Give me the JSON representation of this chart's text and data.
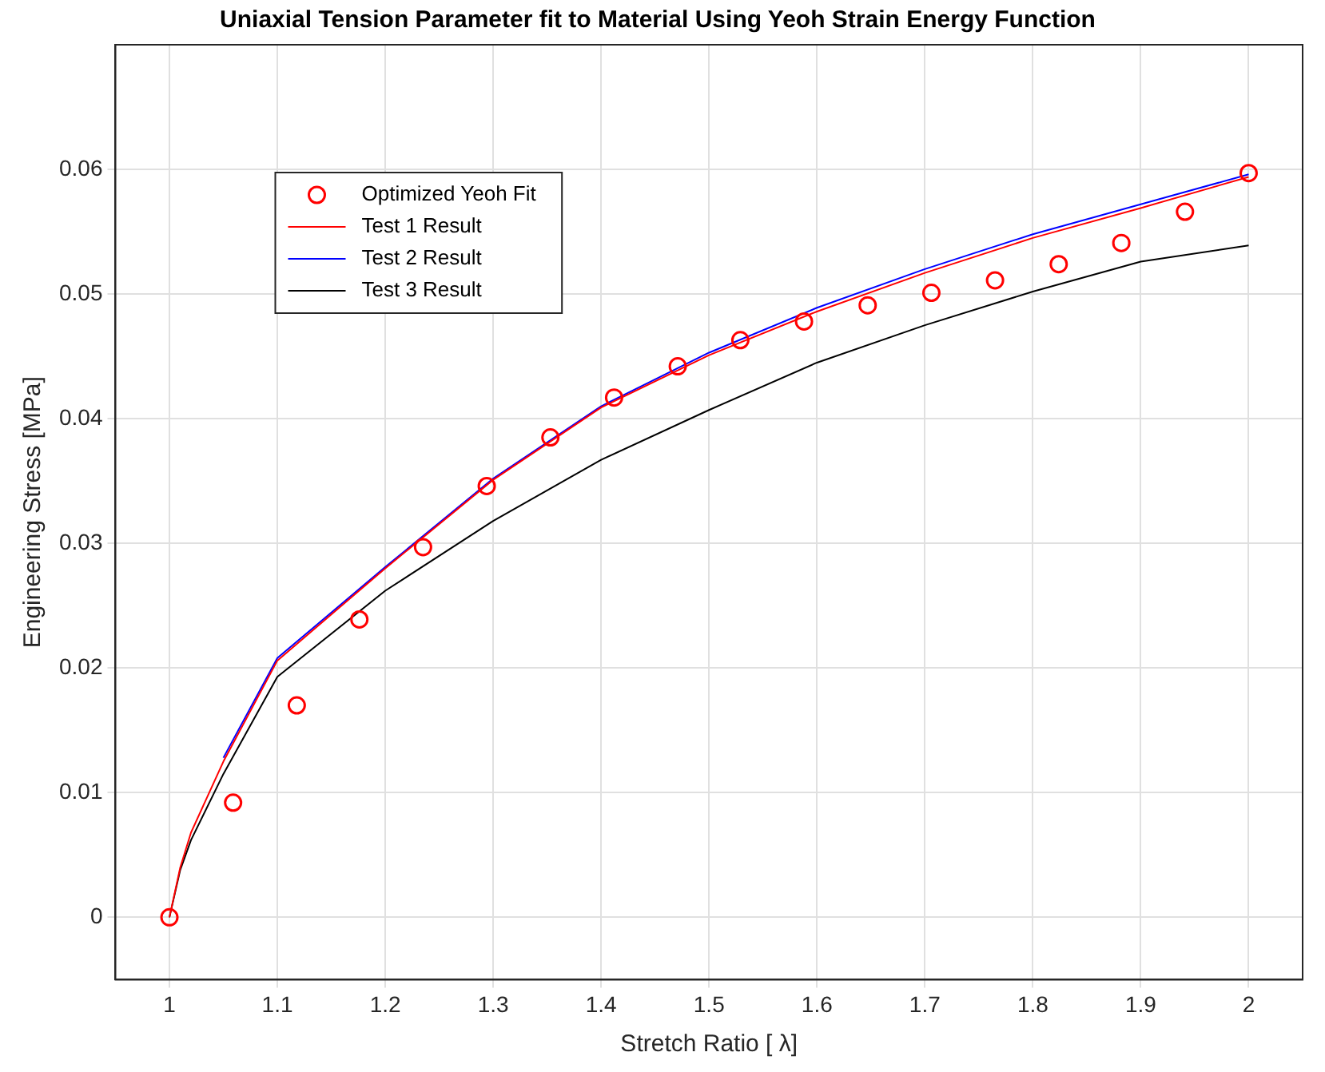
{
  "chart_data": {
    "type": "line",
    "title": "Uniaxial Tension Parameter fit to Material Using Yeoh Strain Energy Function",
    "xlabel": "Stretch Ratio [ λ]",
    "ylabel": "Engineering Stress [MPa]",
    "xlim": [
      0.95,
      2.05
    ],
    "xticks": [
      1,
      1.1,
      1.2,
      1.3,
      1.4,
      1.5,
      1.6,
      1.7,
      1.8,
      1.9,
      2
    ],
    "ylim": [
      -0.005,
      0.07
    ],
    "yticks": [
      0,
      0.01,
      0.02,
      0.03,
      0.04,
      0.05,
      0.06
    ],
    "grid": true,
    "legend": "top left",
    "series": [
      {
        "name": "Optimized Yeoh Fit",
        "type": "scatter",
        "marker": "circle",
        "color": "#ff0000",
        "x": [
          1,
          1.059,
          1.118,
          1.176,
          1.235,
          1.294,
          1.353,
          1.412,
          1.471,
          1.529,
          1.588,
          1.647,
          1.706,
          1.765,
          1.824,
          1.882,
          1.941,
          2
        ],
        "values": [
          0,
          0.0092,
          0.017,
          0.0239,
          0.0297,
          0.0346,
          0.0385,
          0.0417,
          0.0442,
          0.0463,
          0.0478,
          0.0491,
          0.0501,
          0.0511,
          0.0524,
          0.0541,
          0.0566,
          0.0597
        ]
      },
      {
        "name": "Test 1 Result",
        "type": "line",
        "marker": "none",
        "color": "#ff0000",
        "x": [
          1,
          1.01,
          1.02,
          1.05,
          1.1,
          1.2,
          1.3,
          1.4,
          1.5,
          1.6,
          1.7,
          1.8,
          1.9,
          2
        ],
        "values": [
          0,
          0.004,
          0.0068,
          0.0125,
          0.0206,
          0.028,
          0.0351,
          0.0409,
          0.0451,
          0.0486,
          0.0517,
          0.0545,
          0.0569,
          0.0594
        ]
      },
      {
        "name": "Test 2 Result",
        "type": "line",
        "marker": "none",
        "color": "#0000ff",
        "x": [
          1.05,
          1.1,
          1.2,
          1.3,
          1.4,
          1.5,
          1.6,
          1.7,
          1.8,
          1.9,
          2
        ],
        "values": [
          0.0128,
          0.0208,
          0.0281,
          0.0352,
          0.041,
          0.0453,
          0.0489,
          0.052,
          0.0548,
          0.0572,
          0.0596
        ]
      },
      {
        "name": "Test 3 Result",
        "type": "line",
        "marker": "none",
        "color": "#000000",
        "x": [
          1,
          1.01,
          1.02,
          1.05,
          1.1,
          1.2,
          1.3,
          1.4,
          1.5,
          1.6,
          1.7,
          1.8,
          1.9,
          2
        ],
        "values": [
          0,
          0.0038,
          0.0062,
          0.0115,
          0.0193,
          0.0262,
          0.0318,
          0.0367,
          0.0407,
          0.0445,
          0.0475,
          0.0502,
          0.0526,
          0.0539
        ]
      }
    ]
  }
}
